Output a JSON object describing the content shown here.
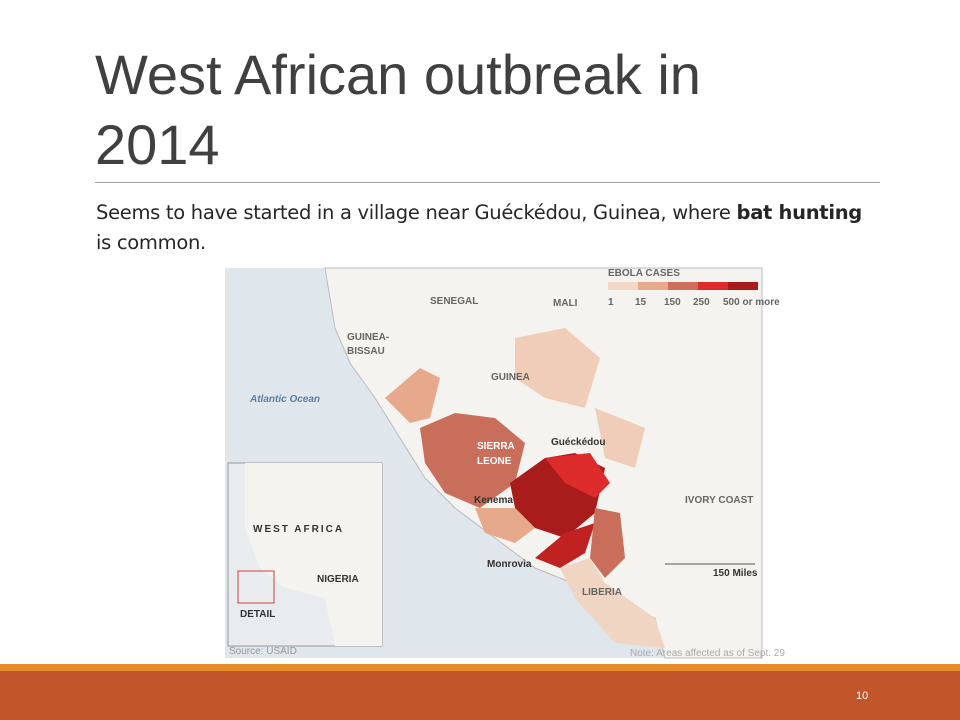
{
  "slide": {
    "title": [
      "West African outbreak in",
      "2014"
    ],
    "body": {
      "before": "Seems to have started in a village near Guéckédou, Guinea, where ",
      "bold": "bat hunting",
      "after": " is common."
    },
    "page_number": "10"
  },
  "map": {
    "labels": {
      "senegal": "SENEGAL",
      "mali": "MALI",
      "guinea_bissau": [
        "GUINEA-",
        "BISSAU"
      ],
      "ocean": "Atlantic Ocean",
      "guinea": "GUINEA",
      "sierra_leone": [
        "SIERRA",
        "LEONE"
      ],
      "gueckedou": "Guéckédou",
      "kenema": "Kenema",
      "ivory_coast": "IVORY COAST",
      "monrovia": "Monrovia",
      "liberia": "LIBERIA",
      "scale": "150 Miles"
    },
    "legend": {
      "title": "EBOLA CASES",
      "ticks": [
        "1",
        "15",
        "150",
        "250",
        "500 or more"
      ]
    },
    "inset": {
      "title": "WEST AFRICA",
      "nigeria": "NIGERIA",
      "detail": "DETAIL"
    },
    "source": "Source: USAID",
    "note": "Note: Areas affected as of Sept. 29"
  }
}
